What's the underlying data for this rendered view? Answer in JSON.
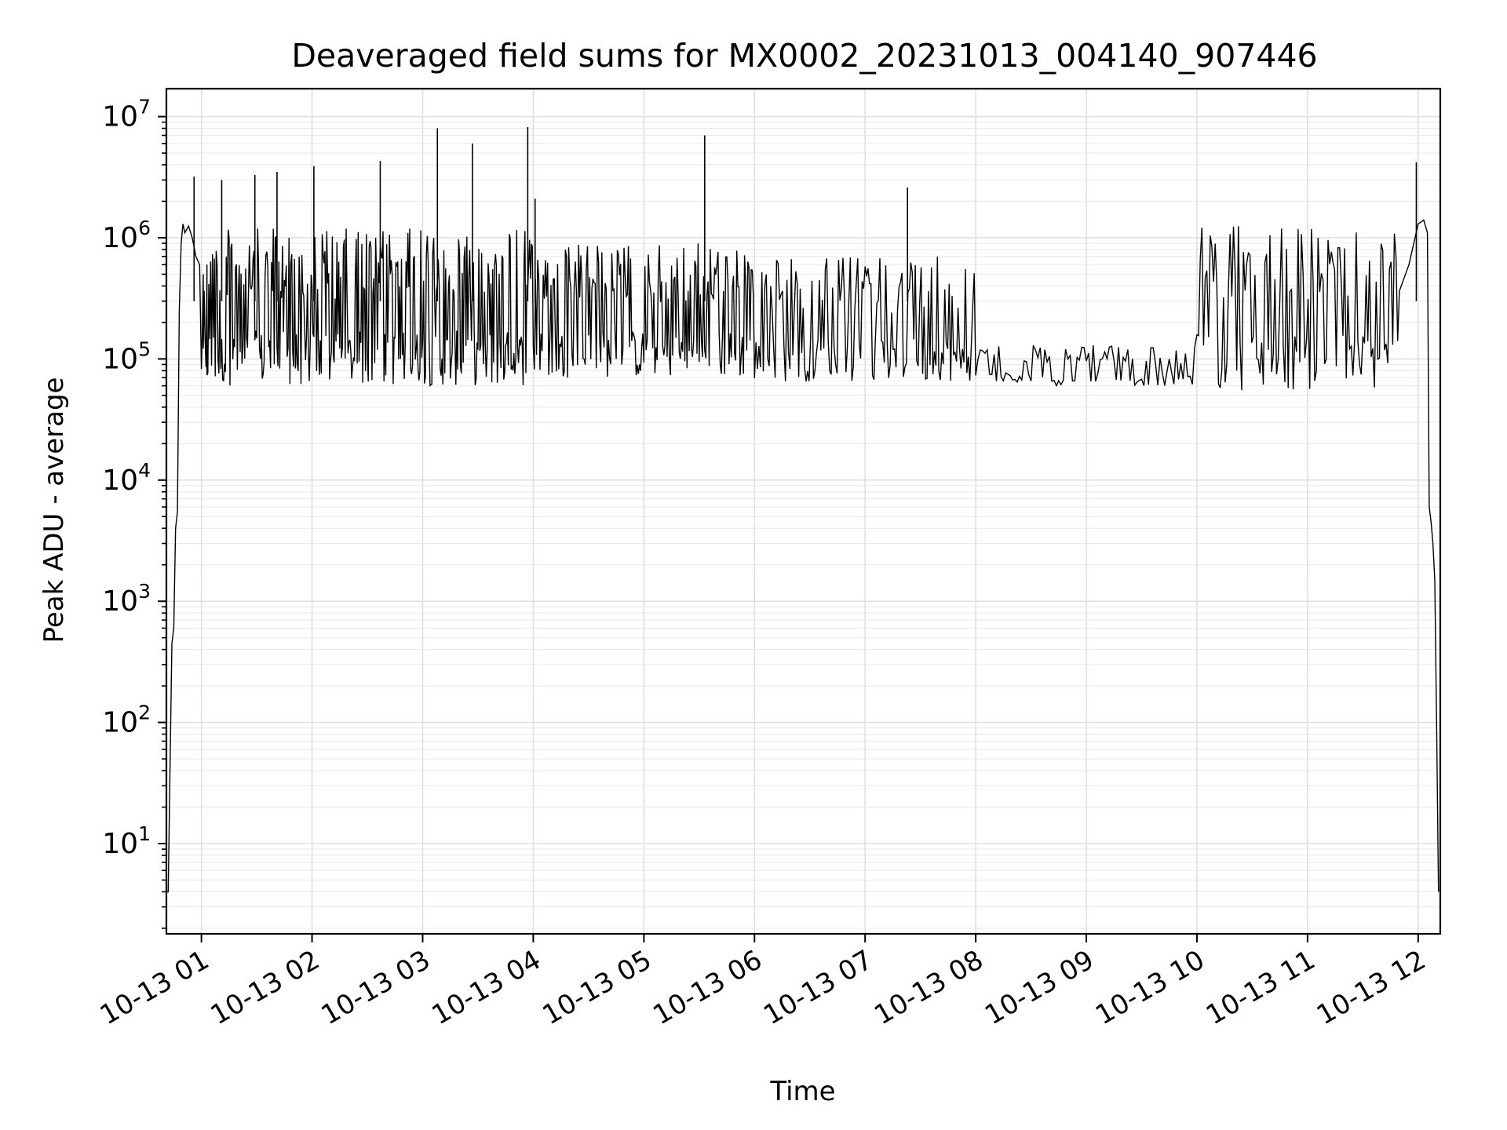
{
  "chart_data": {
    "type": "line",
    "title": "Deaveraged field sums for MX0002_20231013_004140_907446",
    "xlabel": "Time",
    "ylabel": "Peak ADU - average",
    "yscale": "log",
    "ylim": [
      1.8,
      17000000
    ],
    "xlim": [
      "2023-10-13 00:41",
      "2023-10-13 12:12"
    ],
    "grid": true,
    "grid_minor": true,
    "line_color": "#000000",
    "x_ticks": [
      {
        "value": "2023-10-13 01:00",
        "label": "10-13 01"
      },
      {
        "value": "2023-10-13 02:00",
        "label": "10-13 02"
      },
      {
        "value": "2023-10-13 03:00",
        "label": "10-13 03"
      },
      {
        "value": "2023-10-13 04:00",
        "label": "10-13 04"
      },
      {
        "value": "2023-10-13 05:00",
        "label": "10-13 05"
      },
      {
        "value": "2023-10-13 06:00",
        "label": "10-13 06"
      },
      {
        "value": "2023-10-13 07:00",
        "label": "10-13 07"
      },
      {
        "value": "2023-10-13 08:00",
        "label": "10-13 08"
      },
      {
        "value": "2023-10-13 09:00",
        "label": "10-13 09"
      },
      {
        "value": "2023-10-13 10:00",
        "label": "10-13 10"
      },
      {
        "value": "2023-10-13 11:00",
        "label": "10-13 11"
      },
      {
        "value": "2023-10-13 12:00",
        "label": "10-13 12"
      }
    ],
    "y_ticks": [
      {
        "value": 10,
        "base": "10",
        "exp": "1"
      },
      {
        "value": 100,
        "base": "10",
        "exp": "2"
      },
      {
        "value": 1000,
        "base": "10",
        "exp": "3"
      },
      {
        "value": 10000,
        "base": "10",
        "exp": "4"
      },
      {
        "value": 100000,
        "base": "10",
        "exp": "5"
      },
      {
        "value": 1000000,
        "base": "10",
        "exp": "6"
      },
      {
        "value": 10000000,
        "base": "10",
        "exp": "7"
      }
    ],
    "series": [
      {
        "x": [
          "2023-10-13 00:41",
          "2023-10-13 00:42",
          "2023-10-13 00:44",
          "2023-10-13 00:45",
          "2023-10-13 00:46",
          "2023-10-13 00:47",
          "2023-10-13 00:48",
          "2023-10-13 00:49",
          "2023-10-13 00:50",
          "2023-10-13 00:51",
          "2023-10-13 00:53",
          "2023-10-13 00:55",
          "2023-10-13 00:57",
          "2023-10-13 00:59",
          "2023-10-13 01:01",
          "2023-10-13 01:03",
          "2023-10-13 01:15",
          "2023-10-13 01:30",
          "2023-10-13 01:45",
          "2023-10-13 02:00",
          "2023-10-13 02:15",
          "2023-10-13 02:30",
          "2023-10-13 02:45",
          "2023-10-13 03:00",
          "2023-10-13 03:15",
          "2023-10-13 03:30",
          "2023-10-13 03:45",
          "2023-10-13 04:00",
          "2023-10-13 04:15",
          "2023-10-13 04:30",
          "2023-10-13 04:45",
          "2023-10-13 05:00",
          "2023-10-13 05:15",
          "2023-10-13 05:30",
          "2023-10-13 05:45",
          "2023-10-13 06:00",
          "2023-10-13 06:15",
          "2023-10-13 06:30",
          "2023-10-13 06:45",
          "2023-10-13 07:00",
          "2023-10-13 07:15",
          "2023-10-13 07:30",
          "2023-10-13 07:45",
          "2023-10-13 08:00",
          "2023-10-13 08:30",
          "2023-10-13 09:00",
          "2023-10-13 09:30",
          "2023-10-13 10:00",
          "2023-10-13 10:30",
          "2023-10-13 11:00",
          "2023-10-13 11:30",
          "2023-10-13 11:45",
          "2023-10-13 11:55",
          "2023-10-13 12:00",
          "2023-10-13 12:03",
          "2023-10-13 12:05",
          "2023-10-13 12:06",
          "2023-10-13 12:07",
          "2023-10-13 12:08",
          "2023-10-13 12:09",
          "2023-10-13 12:10",
          "2023-10-13 12:11"
        ],
        "y": [
          4,
          4,
          450,
          600,
          4000,
          5500,
          250000,
          900000,
          1300000,
          1100000,
          1250000,
          1000000,
          700000,
          600000,
          500000,
          600000,
          700000,
          800000,
          850000,
          900000,
          900000,
          850000,
          800000,
          700000,
          650000,
          600000,
          550000,
          500000,
          450000,
          400000,
          350000,
          300000,
          280000,
          260000,
          240000,
          220000,
          200000,
          180000,
          160000,
          150000,
          130000,
          110000,
          100000,
          90000,
          90000,
          90000,
          88000,
          90000,
          95000,
          120000,
          200000,
          300000,
          600000,
          1300000,
          1400000,
          1100000,
          6000,
          4500,
          3000,
          1500,
          100,
          4
        ]
      }
    ],
    "spikes": [
      {
        "x": "2023-10-13 00:56",
        "y": 3200000
      },
      {
        "x": "2023-10-13 01:11",
        "y": 3000000
      },
      {
        "x": "2023-10-13 01:29",
        "y": 3300000
      },
      {
        "x": "2023-10-13 01:41",
        "y": 3500000
      },
      {
        "x": "2023-10-13 02:01",
        "y": 3900000
      },
      {
        "x": "2023-10-13 02:37",
        "y": 4300000
      },
      {
        "x": "2023-10-13 03:08",
        "y": 8000000
      },
      {
        "x": "2023-10-13 03:27",
        "y": 6000000
      },
      {
        "x": "2023-10-13 03:57",
        "y": 8200000
      },
      {
        "x": "2023-10-13 04:01",
        "y": 2100000
      },
      {
        "x": "2023-10-13 05:33",
        "y": 7000000
      },
      {
        "x": "2023-10-13 07:23",
        "y": 2600000
      },
      {
        "x": "2023-10-13 11:59",
        "y": 4200000
      }
    ],
    "bands": [
      {
        "x_start": "2023-10-13 01:00",
        "x_end": "2023-10-13 04:00",
        "low": 60000,
        "high": 1200000,
        "step_min": 1.0
      },
      {
        "x_start": "2023-10-13 04:00",
        "x_end": "2023-10-13 06:00",
        "low": 70000,
        "high": 900000,
        "step_min": 1.2
      },
      {
        "x_start": "2023-10-13 06:00",
        "x_end": "2023-10-13 08:00",
        "low": 65000,
        "high": 700000,
        "step_min": 1.6
      },
      {
        "x_start": "2023-10-13 08:00",
        "x_end": "2023-10-13 10:00",
        "low": 60000,
        "high": 130000,
        "step_min": 2.5
      },
      {
        "x_start": "2023-10-13 10:00",
        "x_end": "2023-10-13 11:50",
        "low": 55000,
        "high": 1250000,
        "step_min": 1.8
      }
    ]
  }
}
